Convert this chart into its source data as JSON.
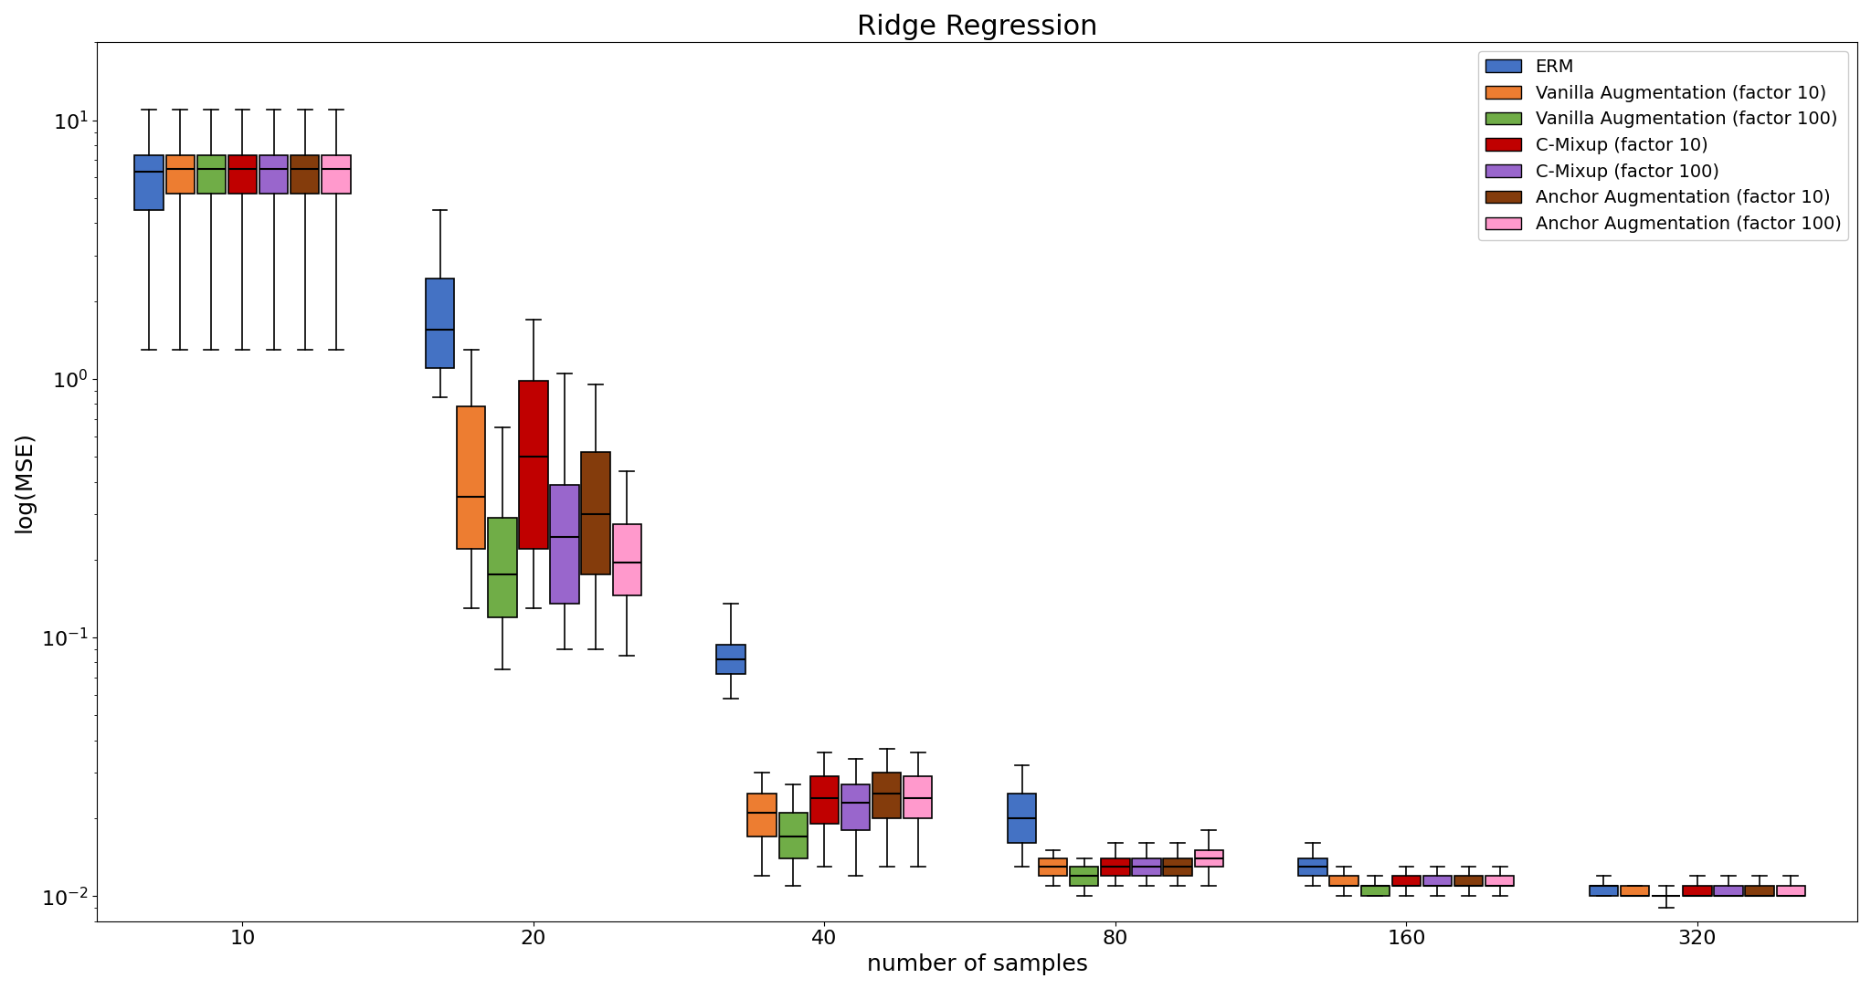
{
  "title": "Ridge Regression",
  "xlabel": "number of samples",
  "ylabel": "log(MSE)",
  "x_positions": [
    10,
    20,
    40,
    80,
    160,
    320
  ],
  "series": [
    {
      "label": "ERM",
      "color": "#4472C4",
      "stats": {
        "10": {
          "whislo": 1.3,
          "q1": 4.5,
          "med": 6.3,
          "q3": 7.3,
          "whishi": 11.0
        },
        "20": {
          "whislo": 0.85,
          "q1": 1.1,
          "med": 1.55,
          "q3": 2.45,
          "whishi": 4.5
        },
        "40": {
          "whislo": 0.058,
          "q1": 0.072,
          "med": 0.082,
          "q3": 0.094,
          "whishi": 0.135
        },
        "80": {
          "whislo": 0.013,
          "q1": 0.016,
          "med": 0.02,
          "q3": 0.025,
          "whishi": 0.032
        },
        "160": {
          "whislo": 0.011,
          "q1": 0.012,
          "med": 0.013,
          "q3": 0.014,
          "whishi": 0.016
        },
        "320": {
          "whislo": 0.01,
          "q1": 0.01,
          "med": 0.011,
          "q3": 0.011,
          "whishi": 0.012
        }
      }
    },
    {
      "label": "Vanilla Augmentation (factor 10)",
      "color": "#ED7D31",
      "stats": {
        "10": {
          "whislo": 1.3,
          "q1": 5.2,
          "med": 6.5,
          "q3": 7.3,
          "whishi": 11.0
        },
        "20": {
          "whislo": 0.13,
          "q1": 0.22,
          "med": 0.35,
          "q3": 0.78,
          "whishi": 1.3
        },
        "40": {
          "whislo": 0.012,
          "q1": 0.017,
          "med": 0.021,
          "q3": 0.025,
          "whishi": 0.03
        },
        "80": {
          "whislo": 0.011,
          "q1": 0.012,
          "med": 0.013,
          "q3": 0.014,
          "whishi": 0.015
        },
        "160": {
          "whislo": 0.01,
          "q1": 0.011,
          "med": 0.011,
          "q3": 0.012,
          "whishi": 0.013
        },
        "320": {
          "whislo": 0.01,
          "q1": 0.01,
          "med": 0.01,
          "q3": 0.011,
          "whishi": 0.011
        }
      }
    },
    {
      "label": "Vanilla Augmentation (factor 100)",
      "color": "#70AD47",
      "stats": {
        "10": {
          "whislo": 1.3,
          "q1": 5.2,
          "med": 6.5,
          "q3": 7.3,
          "whishi": 11.0
        },
        "20": {
          "whislo": 0.075,
          "q1": 0.12,
          "med": 0.175,
          "q3": 0.29,
          "whishi": 0.65
        },
        "40": {
          "whislo": 0.011,
          "q1": 0.014,
          "med": 0.017,
          "q3": 0.021,
          "whishi": 0.027
        },
        "80": {
          "whislo": 0.01,
          "q1": 0.011,
          "med": 0.012,
          "q3": 0.013,
          "whishi": 0.014
        },
        "160": {
          "whislo": 0.01,
          "q1": 0.01,
          "med": 0.011,
          "q3": 0.011,
          "whishi": 0.012
        },
        "320": {
          "whislo": 0.009,
          "q1": 0.01,
          "med": 0.01,
          "q3": 0.01,
          "whishi": 0.011
        }
      }
    },
    {
      "label": "C-Mixup (factor 10)",
      "color": "#C00000",
      "stats": {
        "10": {
          "whislo": 1.3,
          "q1": 5.2,
          "med": 6.5,
          "q3": 7.3,
          "whishi": 11.0
        },
        "20": {
          "whislo": 0.13,
          "q1": 0.22,
          "med": 0.5,
          "q3": 0.98,
          "whishi": 1.7
        },
        "40": {
          "whislo": 0.013,
          "q1": 0.019,
          "med": 0.024,
          "q3": 0.029,
          "whishi": 0.036
        },
        "80": {
          "whislo": 0.011,
          "q1": 0.012,
          "med": 0.013,
          "q3": 0.014,
          "whishi": 0.016
        },
        "160": {
          "whislo": 0.01,
          "q1": 0.011,
          "med": 0.011,
          "q3": 0.012,
          "whishi": 0.013
        },
        "320": {
          "whislo": 0.01,
          "q1": 0.01,
          "med": 0.01,
          "q3": 0.011,
          "whishi": 0.012
        }
      }
    },
    {
      "label": "C-Mixup (factor 100)",
      "color": "#9966CC",
      "stats": {
        "10": {
          "whislo": 1.3,
          "q1": 5.2,
          "med": 6.5,
          "q3": 7.3,
          "whishi": 11.0
        },
        "20": {
          "whislo": 0.09,
          "q1": 0.135,
          "med": 0.245,
          "q3": 0.39,
          "whishi": 1.05
        },
        "40": {
          "whislo": 0.012,
          "q1": 0.018,
          "med": 0.023,
          "q3": 0.027,
          "whishi": 0.034
        },
        "80": {
          "whislo": 0.011,
          "q1": 0.012,
          "med": 0.013,
          "q3": 0.014,
          "whishi": 0.016
        },
        "160": {
          "whislo": 0.01,
          "q1": 0.011,
          "med": 0.011,
          "q3": 0.012,
          "whishi": 0.013
        },
        "320": {
          "whislo": 0.01,
          "q1": 0.01,
          "med": 0.01,
          "q3": 0.011,
          "whishi": 0.012
        }
      }
    },
    {
      "label": "Anchor Augmentation (factor 10)",
      "color": "#843C0C",
      "stats": {
        "10": {
          "whislo": 1.3,
          "q1": 5.2,
          "med": 6.5,
          "q3": 7.3,
          "whishi": 11.0
        },
        "20": {
          "whislo": 0.09,
          "q1": 0.175,
          "med": 0.3,
          "q3": 0.52,
          "whishi": 0.95
        },
        "40": {
          "whislo": 0.013,
          "q1": 0.02,
          "med": 0.025,
          "q3": 0.03,
          "whishi": 0.037
        },
        "80": {
          "whislo": 0.011,
          "q1": 0.012,
          "med": 0.013,
          "q3": 0.014,
          "whishi": 0.016
        },
        "160": {
          "whislo": 0.01,
          "q1": 0.011,
          "med": 0.011,
          "q3": 0.012,
          "whishi": 0.013
        },
        "320": {
          "whislo": 0.01,
          "q1": 0.01,
          "med": 0.01,
          "q3": 0.011,
          "whishi": 0.012
        }
      }
    },
    {
      "label": "Anchor Augmentation (factor 100)",
      "color": "#FF99CC",
      "stats": {
        "10": {
          "whislo": 1.3,
          "q1": 5.2,
          "med": 6.5,
          "q3": 7.3,
          "whishi": 11.0
        },
        "20": {
          "whislo": 0.085,
          "q1": 0.145,
          "med": 0.195,
          "q3": 0.275,
          "whishi": 0.44
        },
        "40": {
          "whislo": 0.013,
          "q1": 0.02,
          "med": 0.024,
          "q3": 0.029,
          "whishi": 0.036
        },
        "80": {
          "whislo": 0.011,
          "q1": 0.013,
          "med": 0.014,
          "q3": 0.015,
          "whishi": 0.018
        },
        "160": {
          "whislo": 0.01,
          "q1": 0.011,
          "med": 0.011,
          "q3": 0.012,
          "whishi": 0.013
        },
        "320": {
          "whislo": 0.01,
          "q1": 0.01,
          "med": 0.01,
          "q3": 0.011,
          "whishi": 0.012
        }
      }
    }
  ],
  "ylim": [
    0.008,
    20.0
  ],
  "title_fontsize": 22,
  "label_fontsize": 18,
  "tick_fontsize": 16,
  "legend_fontsize": 14,
  "box_width": 0.5,
  "cap_size": 3
}
